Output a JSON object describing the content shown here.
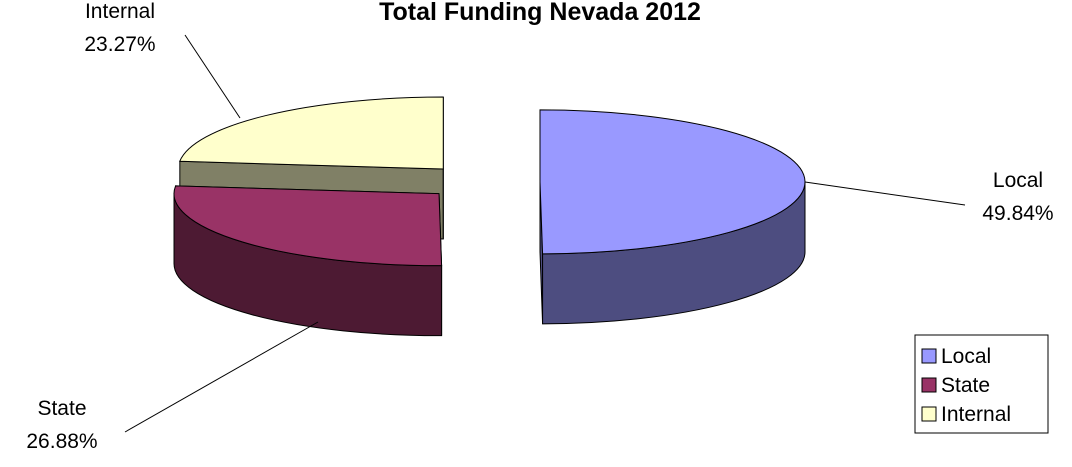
{
  "chart_data": {
    "type": "pie",
    "title": "Total Funding Nevada 2012",
    "categories": [
      "Local",
      "State",
      "Internal"
    ],
    "values": [
      49.84,
      26.88,
      23.27
    ],
    "value_labels": [
      "49.84%",
      "26.88%",
      "23.27%"
    ],
    "colors": [
      "#9999ff",
      "#993366",
      "#ffffcc"
    ],
    "three_d": true,
    "exploded": true,
    "legend": "right"
  }
}
